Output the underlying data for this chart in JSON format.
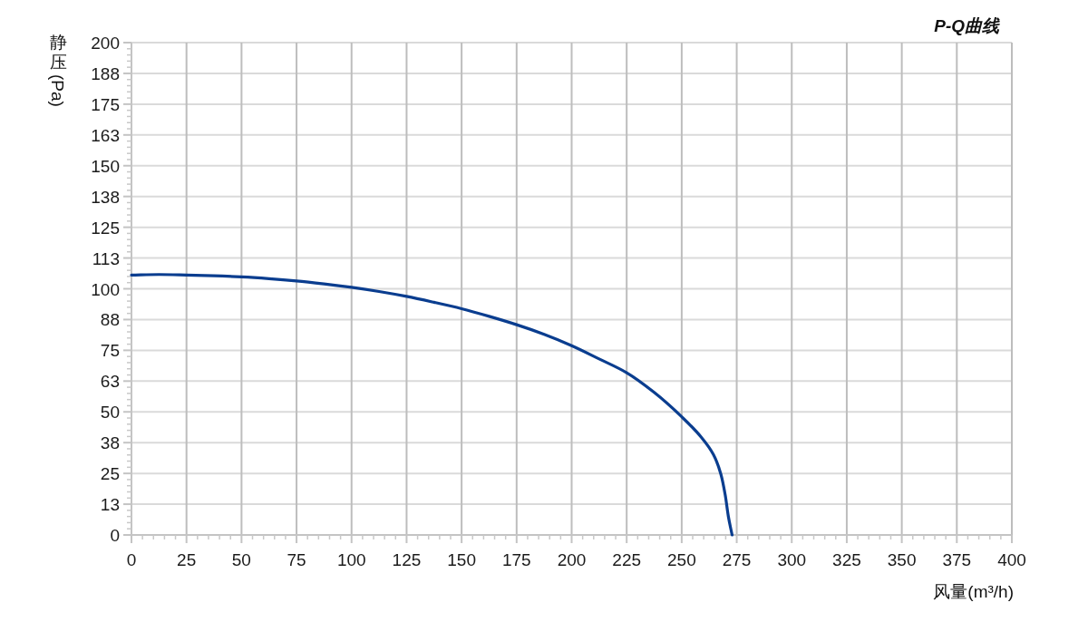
{
  "chart_data": {
    "type": "line",
    "title": "P-Q曲线",
    "xlabel": "风量(m³/h)",
    "ylabel": "静压(Pa)",
    "x": [
      0,
      12.5,
      25,
      37.5,
      50,
      62.5,
      75,
      87.5,
      100,
      112.5,
      125,
      137.5,
      150,
      162.5,
      175,
      187.5,
      200,
      212.5,
      225,
      237.5,
      250,
      258.9,
      264.4,
      267.8,
      269.8,
      271.2,
      272.9
    ],
    "series": [
      {
        "color": "#0a3d8f",
        "values": [
          105.6,
          105.8,
          105.6,
          105.3,
          104.8,
          104.1,
          103.2,
          102.0,
          100.6,
          98.9,
          96.9,
          94.5,
          91.9,
          88.8,
          85.4,
          81.5,
          76.9,
          71.5,
          65.9,
          57.9,
          48.0,
          39.7,
          32.7,
          24.7,
          16.1,
          7.5,
          0
        ]
      }
    ],
    "xlim": [
      0,
      400
    ],
    "ylim": [
      0,
      200
    ],
    "xticks": [
      0,
      25,
      50,
      75,
      100,
      125,
      150,
      175,
      200,
      225,
      250,
      275,
      300,
      325,
      350,
      375,
      400
    ],
    "yticks": [
      0,
      {
        "value": 12.5,
        "label": "13"
      },
      25,
      {
        "value": 37.5,
        "label": "38"
      },
      50,
      {
        "value": 62.5,
        "label": "63"
      },
      75,
      {
        "value": 87.5,
        "label": "88"
      },
      100,
      {
        "value": 112.5,
        "label": "113"
      },
      125,
      {
        "value": 137.5,
        "label": "138"
      },
      150,
      {
        "value": 162.5,
        "label": "163"
      },
      175,
      {
        "value": 187.5,
        "label": "188"
      },
      200
    ],
    "grid": true
  }
}
